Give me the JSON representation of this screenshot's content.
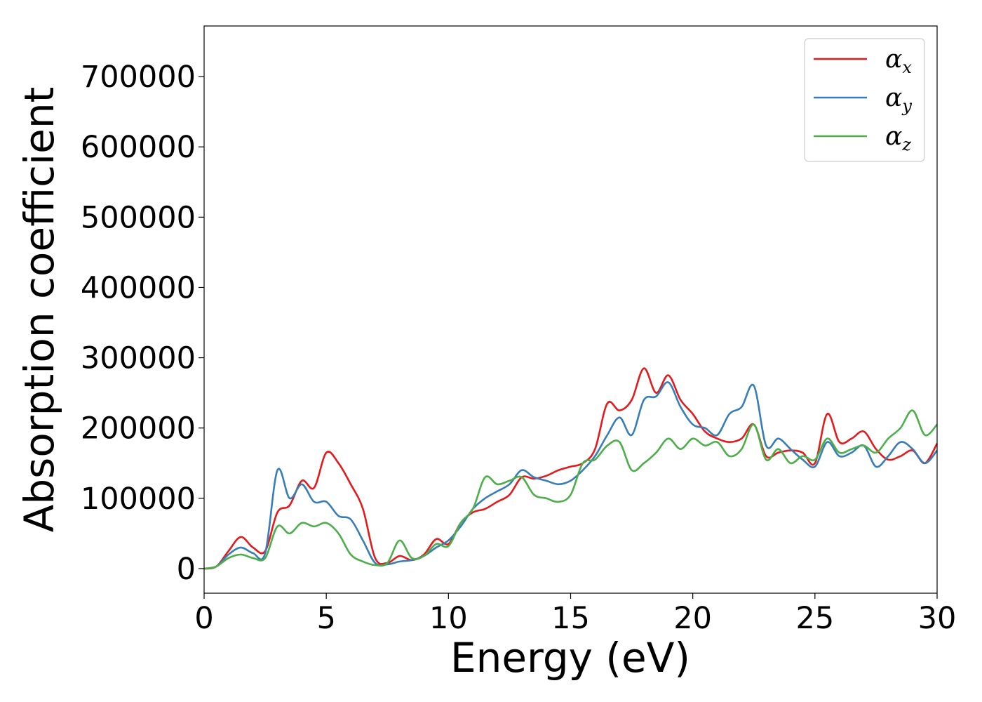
{
  "chart_data": {
    "type": "line",
    "xlabel": "Energy (eV)",
    "ylabel": "Absorption coefficient",
    "xlim": [
      0,
      30
    ],
    "ylim": [
      -35000,
      772000
    ],
    "xticks": [
      0,
      5,
      10,
      15,
      20,
      25,
      30
    ],
    "yticks": [
      0,
      100000,
      200000,
      300000,
      400000,
      500000,
      600000,
      700000
    ],
    "grid": false,
    "legend_position": "top-right",
    "x": [
      0,
      0.5,
      1,
      1.5,
      2,
      2.5,
      3,
      3.5,
      4,
      4.5,
      5,
      5.5,
      6,
      6.5,
      7,
      7.5,
      8,
      8.5,
      9,
      9.5,
      10,
      10.5,
      11,
      11.5,
      12,
      12.5,
      13,
      13.5,
      14,
      14.5,
      15,
      15.5,
      16,
      16.5,
      17,
      17.5,
      18,
      18.5,
      19,
      19.5,
      20,
      20.5,
      21,
      21.5,
      22,
      22.5,
      23,
      23.5,
      24,
      24.5,
      25,
      25.5,
      26,
      26.5,
      27,
      27.5,
      28,
      28.5,
      29,
      29.5,
      30
    ],
    "series": [
      {
        "name": "α",
        "subscript": "x",
        "color": "#e41a1c",
        "values": [
          0,
          3000,
          25000,
          45000,
          30000,
          25000,
          80000,
          90000,
          125000,
          115000,
          165000,
          150000,
          120000,
          85000,
          15000,
          8000,
          18000,
          12000,
          20000,
          42000,
          35000,
          65000,
          80000,
          85000,
          95000,
          105000,
          130000,
          128000,
          132000,
          140000,
          145000,
          150000,
          170000,
          235000,
          225000,
          240000,
          285000,
          250000,
          275000,
          240000,
          220000,
          195000,
          185000,
          180000,
          185000,
          205000,
          160000,
          165000,
          168000,
          165000,
          150000,
          220000,
          180000,
          185000,
          195000,
          170000,
          155000,
          160000,
          168000,
          150000,
          178000
        ]
      },
      {
        "name": "α",
        "subscript": "y",
        "color": "#377eb8",
        "values": [
          0,
          3000,
          20000,
          30000,
          22000,
          22000,
          140000,
          100000,
          120000,
          95000,
          95000,
          75000,
          70000,
          40000,
          8000,
          6000,
          10000,
          12000,
          18000,
          30000,
          40000,
          60000,
          85000,
          100000,
          110000,
          120000,
          140000,
          130000,
          125000,
          120000,
          125000,
          140000,
          160000,
          190000,
          215000,
          190000,
          240000,
          245000,
          265000,
          230000,
          205000,
          200000,
          190000,
          220000,
          230000,
          260000,
          175000,
          185000,
          170000,
          155000,
          145000,
          180000,
          160000,
          165000,
          175000,
          145000,
          160000,
          180000,
          170000,
          150000,
          168000
        ]
      },
      {
        "name": "α",
        "subscript": "z",
        "color": "#4daf4a",
        "values": [
          0,
          3000,
          15000,
          20000,
          15000,
          15000,
          60000,
          50000,
          65000,
          60000,
          65000,
          50000,
          20000,
          10000,
          5000,
          8000,
          40000,
          15000,
          18000,
          35000,
          32000,
          65000,
          85000,
          130000,
          120000,
          125000,
          130000,
          105000,
          100000,
          95000,
          105000,
          150000,
          155000,
          175000,
          180000,
          140000,
          150000,
          165000,
          185000,
          170000,
          185000,
          175000,
          180000,
          160000,
          170000,
          205000,
          155000,
          170000,
          150000,
          160000,
          155000,
          185000,
          165000,
          170000,
          175000,
          165000,
          185000,
          200000,
          225000,
          190000,
          205000
        ]
      }
    ]
  }
}
